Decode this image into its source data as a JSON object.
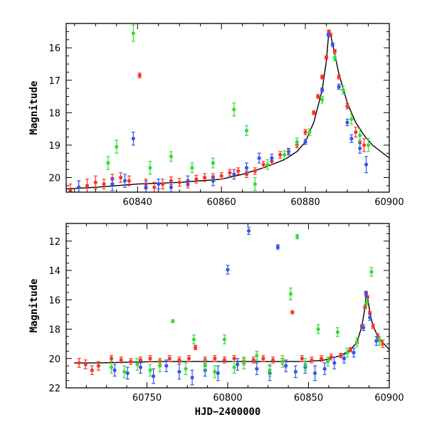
{
  "chart_data": [
    {
      "type": "scatter",
      "title": "",
      "xlabel": "",
      "ylabel": "Magnitude",
      "xlim": [
        60823,
        60900
      ],
      "ylim": [
        20.45,
        15.25
      ],
      "y_inverted": true,
      "x_ticks": [
        60840,
        60860,
        60880,
        60900
      ],
      "y_ticks": [
        16,
        17,
        18,
        19,
        20
      ],
      "model_curve": {
        "x": [
          60823,
          60830,
          60840,
          60850,
          60860,
          60865,
          60870,
          60875,
          60878,
          60880,
          60882,
          60884,
          60885,
          60885.6,
          60886,
          60887,
          60888,
          60890,
          60892,
          60894,
          60896,
          60898,
          60900
        ],
        "y": [
          20.35,
          20.3,
          20.2,
          20.15,
          20.05,
          19.9,
          19.7,
          19.45,
          19.2,
          18.9,
          18.3,
          17.3,
          16.4,
          15.5,
          15.6,
          16.2,
          16.8,
          17.7,
          18.3,
          18.7,
          19.0,
          19.2,
          19.4
        ]
      },
      "series": [
        {
          "color": "#ff3322",
          "x": [
            60824,
            60826,
            60828,
            60830,
            60832,
            60834,
            60836,
            60838,
            60840.5,
            60842,
            60844,
            60846,
            60848,
            60850,
            60852,
            60854,
            60856,
            60858,
            60860,
            60862,
            60864,
            60866,
            60868,
            60870,
            60872,
            60874,
            60876,
            60878,
            60880,
            60882,
            60883,
            60884,
            60885,
            60885.6,
            60886,
            60887,
            60888,
            60890,
            60892,
            60893,
            60894
          ],
          "y": [
            20.4,
            20.3,
            20.25,
            20.15,
            20.2,
            20.05,
            20.0,
            20.1,
            16.85,
            20.2,
            20.3,
            20.2,
            20.1,
            20.15,
            20.2,
            20.05,
            20.0,
            20.0,
            19.95,
            19.85,
            19.8,
            19.9,
            19.8,
            19.6,
            19.5,
            19.3,
            19.2,
            19.0,
            18.6,
            18.0,
            17.5,
            16.9,
            16.3,
            15.5,
            15.6,
            16.1,
            16.9,
            17.8,
            18.6,
            18.9,
            19.0
          ],
          "err": [
            0.2,
            0.2,
            0.2,
            0.2,
            0.15,
            0.15,
            0.15,
            0.15,
            0.07,
            0.15,
            0.15,
            0.15,
            0.12,
            0.12,
            0.12,
            0.12,
            0.12,
            0.12,
            0.1,
            0.1,
            0.1,
            0.1,
            0.1,
            0.1,
            0.1,
            0.1,
            0.08,
            0.08,
            0.08,
            0.06,
            0.06,
            0.06,
            0.05,
            0.05,
            0.05,
            0.05,
            0.06,
            0.08,
            0.15,
            0.2,
            0.2
          ]
        },
        {
          "color": "#3355ee",
          "x": [
            60826,
            60834,
            60837,
            60839,
            60842,
            60845,
            60848,
            60852,
            60858,
            60863,
            60866,
            60869,
            60872,
            60876,
            60880,
            60884,
            60885.5,
            60886.5,
            60888,
            60890,
            60891,
            60893,
            60894.5
          ],
          "y": [
            20.3,
            20.2,
            20.1,
            18.8,
            20.3,
            20.2,
            20.3,
            20.1,
            20.1,
            19.9,
            19.7,
            19.4,
            19.4,
            19.2,
            18.9,
            17.3,
            15.6,
            15.9,
            17.2,
            18.3,
            18.8,
            19.1,
            19.6
          ],
          "err": [
            0.2,
            0.2,
            0.2,
            0.2,
            0.2,
            0.15,
            0.15,
            0.15,
            0.15,
            0.15,
            0.15,
            0.15,
            0.12,
            0.1,
            0.08,
            0.06,
            0.05,
            0.05,
            0.08,
            0.1,
            0.12,
            0.15,
            0.25
          ]
        },
        {
          "color": "#33dd33",
          "x": [
            60833,
            60835,
            60839,
            60843,
            60848,
            60853,
            60858,
            60863,
            60866,
            60868,
            60871,
            60875,
            60878,
            60881,
            60884,
            60887,
            60889,
            60891,
            60893,
            60895
          ],
          "y": [
            19.55,
            19.05,
            15.55,
            19.7,
            19.35,
            19.7,
            19.55,
            17.9,
            18.55,
            20.2,
            19.6,
            19.3,
            18.9,
            18.6,
            17.6,
            16.3,
            17.3,
            18.2,
            18.7,
            19.0
          ],
          "err": [
            0.2,
            0.2,
            0.25,
            0.2,
            0.15,
            0.15,
            0.15,
            0.2,
            0.15,
            0.2,
            0.15,
            0.12,
            0.12,
            0.1,
            0.1,
            0.1,
            0.12,
            0.15,
            0.2,
            0.2
          ]
        }
      ]
    },
    {
      "type": "scatter",
      "title": "",
      "xlabel": "HJD−2400000",
      "ylabel": "Magnitude",
      "xlim": [
        60700,
        60900
      ],
      "ylim": [
        22,
        10.8
      ],
      "y_inverted": true,
      "x_ticks": [
        60750,
        60800,
        60850,
        60900
      ],
      "y_ticks": [
        12,
        14,
        16,
        18,
        20,
        22
      ],
      "model_curve": {
        "x": [
          60705,
          60720,
          60740,
          60760,
          60780,
          60800,
          60820,
          60840,
          60850,
          60860,
          60870,
          60876,
          60880,
          60883,
          60885,
          60885.6,
          60886.5,
          60888,
          60890,
          60893,
          60896,
          60900
        ],
        "y": [
          20.3,
          20.3,
          20.25,
          20.2,
          20.2,
          20.2,
          20.2,
          20.2,
          20.2,
          20.1,
          19.8,
          19.4,
          18.9,
          17.8,
          16.5,
          15.5,
          15.8,
          16.9,
          17.8,
          18.5,
          18.9,
          19.4
        ]
      },
      "series": [
        {
          "color": "#ff3322",
          "x": [
            60708,
            60712,
            60716,
            60720,
            60728,
            60734,
            60740,
            60746,
            60752,
            60758,
            60764,
            60770,
            60776,
            60780,
            60786,
            60792,
            60798,
            60804,
            60810,
            60816,
            60822,
            60828,
            60834,
            60840,
            60846,
            60852,
            60858,
            60864,
            60870,
            60876,
            60880,
            60883,
            60885,
            60885.6,
            60886.5,
            60888,
            60890,
            60893,
            60896
          ],
          "y": [
            20.3,
            20.4,
            20.8,
            20.5,
            20.0,
            20.1,
            20.2,
            20.1,
            20.0,
            20.2,
            20.0,
            20.1,
            20.0,
            19.25,
            20.1,
            20.0,
            20.1,
            20.0,
            20.2,
            20.1,
            20.0,
            20.1,
            20.2,
            16.85,
            20.0,
            20.1,
            20.0,
            19.9,
            19.8,
            19.4,
            18.9,
            17.8,
            16.5,
            15.5,
            15.8,
            16.9,
            17.8,
            18.5,
            19.0
          ],
          "err": [
            0.3,
            0.3,
            0.3,
            0.3,
            0.2,
            0.2,
            0.2,
            0.2,
            0.2,
            0.2,
            0.2,
            0.2,
            0.2,
            0.15,
            0.2,
            0.2,
            0.2,
            0.2,
            0.2,
            0.2,
            0.2,
            0.2,
            0.2,
            0.1,
            0.2,
            0.2,
            0.2,
            0.2,
            0.15,
            0.15,
            0.1,
            0.1,
            0.1,
            0.08,
            0.08,
            0.1,
            0.15,
            0.2,
            0.25
          ]
        },
        {
          "color": "#3355ee",
          "x": [
            60730,
            60738,
            60746,
            60754,
            60762,
            60770,
            60778,
            60786,
            60794,
            60800,
            60806,
            60813,
            60818,
            60826,
            60831,
            60836,
            60842,
            60848,
            60854,
            60860,
            60866,
            60872,
            60878,
            60884,
            60885.6,
            60888,
            60892
          ],
          "y": [
            20.8,
            21.0,
            20.6,
            21.2,
            20.5,
            20.9,
            21.3,
            20.8,
            21.0,
            13.95,
            20.4,
            11.3,
            20.7,
            21.0,
            12.4,
            20.5,
            20.9,
            20.6,
            21.0,
            20.7,
            20.3,
            20.0,
            19.6,
            17.9,
            15.6,
            17.2,
            18.8
          ],
          "err": [
            0.4,
            0.4,
            0.4,
            0.5,
            0.4,
            0.5,
            0.5,
            0.4,
            0.5,
            0.3,
            0.4,
            0.25,
            0.4,
            0.5,
            0.15,
            0.4,
            0.4,
            0.4,
            0.5,
            0.4,
            0.4,
            0.3,
            0.3,
            0.2,
            0.15,
            0.2,
            0.3
          ]
        },
        {
          "color": "#33dd33",
          "x": [
            60728,
            60736,
            60744,
            60752,
            60758,
            60766,
            60774,
            60779,
            60786,
            60792,
            60798,
            60804,
            60810,
            60818,
            60826,
            60834,
            60839,
            60843,
            60848,
            60856,
            60862,
            60868,
            60874,
            60880,
            60886,
            60889,
            60894
          ],
          "y": [
            20.6,
            20.9,
            20.4,
            20.8,
            20.5,
            17.45,
            20.7,
            18.7,
            20.5,
            20.9,
            18.7,
            20.6,
            20.3,
            19.8,
            20.8,
            20.2,
            15.6,
            11.7,
            20.4,
            18.0,
            20.2,
            18.2,
            19.6,
            18.9,
            16.2,
            14.1,
            18.8
          ],
          "err": [
            0.4,
            0.4,
            0.4,
            0.4,
            0.4,
            0.1,
            0.4,
            0.3,
            0.4,
            0.4,
            0.3,
            0.4,
            0.4,
            0.3,
            0.4,
            0.4,
            0.4,
            0.15,
            0.4,
            0.3,
            0.3,
            0.3,
            0.3,
            0.3,
            0.2,
            0.3,
            0.3
          ]
        }
      ]
    }
  ]
}
